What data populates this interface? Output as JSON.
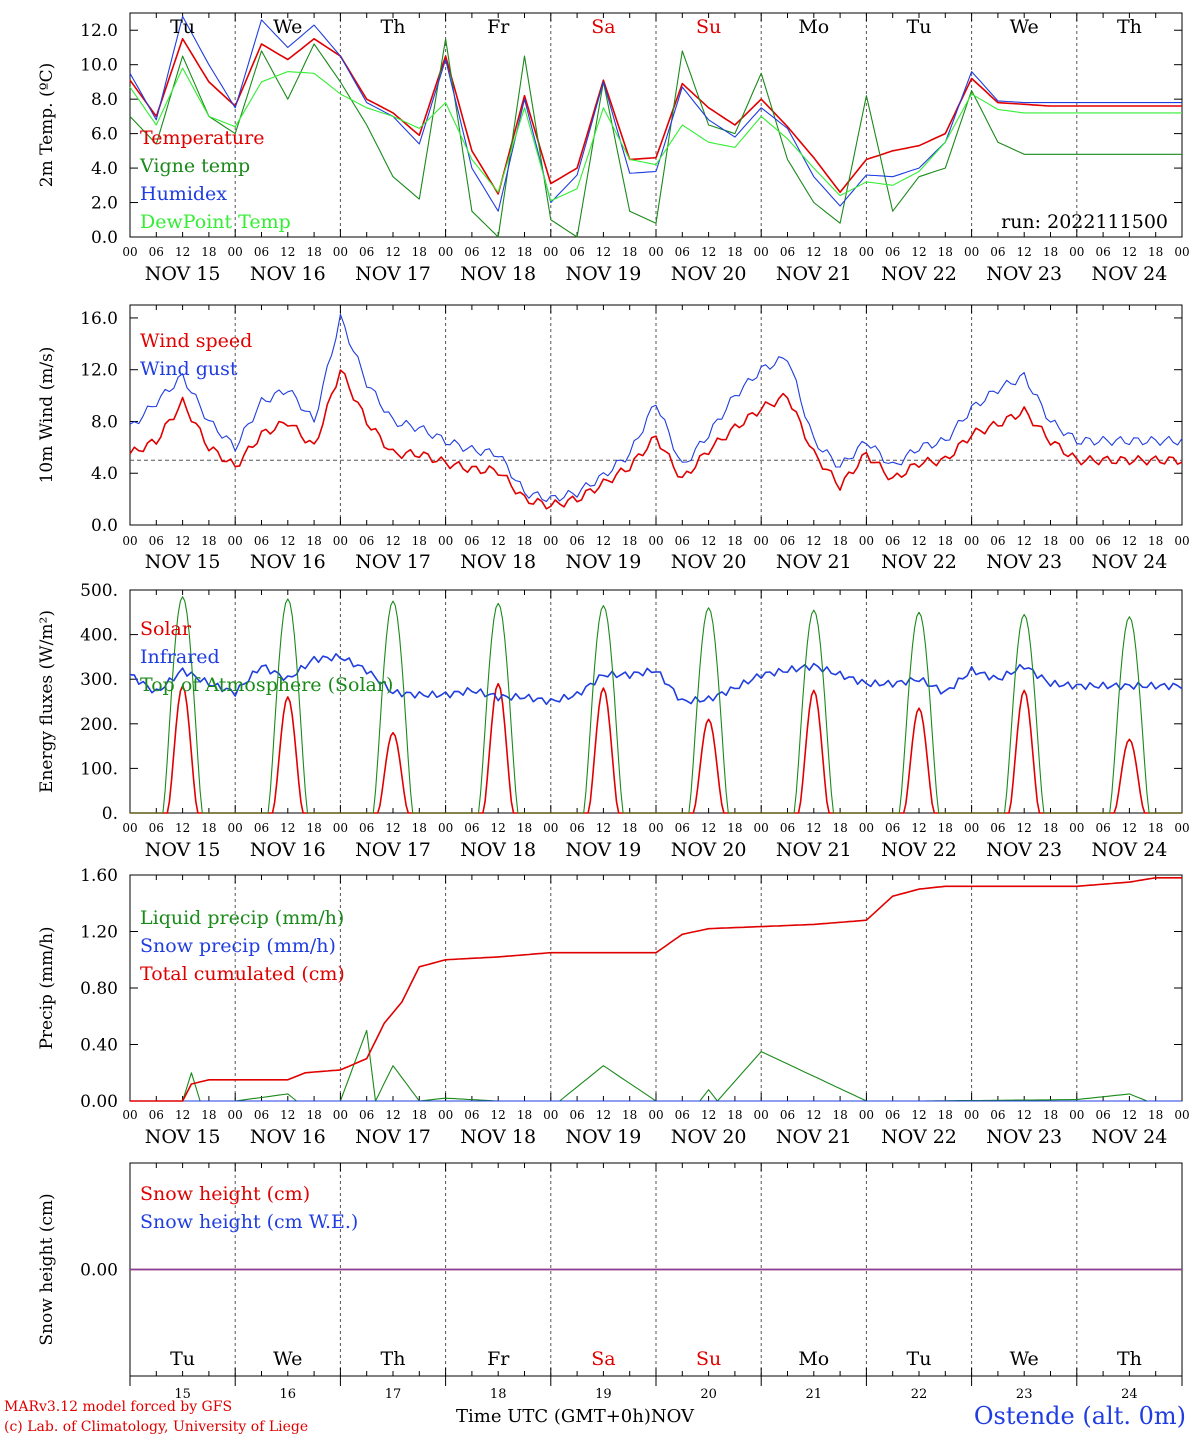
{
  "footer": {
    "credit_line1": "MARv3.12 model forced by GFS",
    "credit_line2": "(c) Lab. of Climatology, University of Liege",
    "xaxis_title": "Time UTC (GMT+0h)NOV",
    "station": "Ostende (alt. 0m)"
  },
  "run_label": "run: 2022111500",
  "hour_ticks": [
    "00",
    "06",
    "12",
    "18"
  ],
  "date_labels": [
    "NOV 15",
    "NOV 16",
    "NOV 17",
    "NOV 18",
    "NOV 19",
    "NOV 20",
    "NOV 21",
    "NOV 22",
    "NOV 23",
    "NOV 24"
  ],
  "weekdays": [
    "Tu",
    "We",
    "Th",
    "Fr",
    "Sa",
    "Su",
    "Mo",
    "Tu",
    "We",
    "Th"
  ],
  "weekend_color": "#e00000",
  "bottom_days": [
    "15",
    "16",
    "17",
    "18",
    "19",
    "20",
    "21",
    "22",
    "23",
    "24"
  ],
  "colors": {
    "red": "#e00000",
    "darkgreen": "#1a8a1a",
    "blue": "#1f3de0",
    "lightgreen": "#33ee33",
    "grid": "#555555",
    "purple": "#8040a0"
  },
  "chart_data": [
    {
      "type": "line",
      "ylabel": "2m Temp. (ºC)",
      "ylim": [
        0,
        13
      ],
      "yticks": [
        "0.0",
        "2.0",
        "4.0",
        "6.0",
        "8.0",
        "10.0",
        "12.0"
      ],
      "x_unit": "hours since NOV 15 00 UTC",
      "series": [
        {
          "name": "Temperature",
          "color": "red",
          "x": [
            0,
            6,
            12,
            18,
            24,
            30,
            36,
            42,
            48,
            54,
            60,
            66,
            72,
            78,
            84,
            90,
            96,
            102,
            108,
            114,
            120,
            126,
            132,
            138,
            144,
            150,
            156,
            162,
            168,
            174,
            180,
            186,
            192,
            198,
            204,
            210,
            216,
            222,
            228,
            234,
            240
          ],
          "values": [
            9.1,
            7.0,
            11.5,
            9.0,
            7.6,
            11.2,
            10.3,
            11.5,
            10.5,
            8.0,
            7.2,
            5.9,
            10.5,
            5.0,
            2.5,
            8.2,
            3.1,
            4.0,
            9.1,
            4.5,
            4.6,
            8.9,
            7.5,
            6.5,
            8.0,
            6.4,
            4.6,
            2.6,
            4.5,
            5.0,
            5.3,
            6.0,
            9.2,
            7.8,
            7.7,
            7.6,
            7.6,
            7.6,
            7.6,
            7.6,
            7.6
          ]
        },
        {
          "name": "Vigne temp",
          "color": "darkgreen",
          "x": [
            0,
            6,
            12,
            18,
            24,
            30,
            36,
            42,
            48,
            54,
            60,
            66,
            72,
            78,
            84,
            90,
            96,
            102,
            108,
            114,
            120,
            126,
            132,
            138,
            144,
            150,
            156,
            162,
            168,
            174,
            180,
            186,
            192,
            198,
            204,
            210,
            216,
            222,
            228,
            234,
            240
          ],
          "values": [
            7.0,
            5.4,
            10.5,
            7.0,
            6.0,
            10.8,
            8.0,
            11.2,
            9.0,
            6.5,
            3.5,
            2.2,
            11.5,
            1.5,
            0.0,
            10.5,
            1.0,
            0.0,
            9.0,
            1.5,
            0.8,
            10.8,
            6.5,
            6.0,
            9.5,
            4.5,
            2.0,
            0.8,
            8.2,
            1.5,
            3.5,
            4.0,
            8.5,
            5.5,
            4.8,
            4.8,
            4.8,
            4.8,
            4.8,
            4.8,
            4.8
          ]
        },
        {
          "name": "Humidex",
          "color": "blue",
          "x": [
            0,
            6,
            12,
            18,
            24,
            30,
            36,
            42,
            48,
            54,
            60,
            66,
            72,
            78,
            84,
            90,
            96,
            102,
            108,
            114,
            120,
            126,
            132,
            138,
            144,
            150,
            156,
            162,
            168,
            174,
            180,
            186,
            192,
            198,
            204,
            210,
            216,
            222,
            228,
            234,
            240
          ],
          "values": [
            9.5,
            6.8,
            12.8,
            10.0,
            7.5,
            12.6,
            11.0,
            12.3,
            10.5,
            7.8,
            7.0,
            5.4,
            10.3,
            4.0,
            1.5,
            8.0,
            2.0,
            3.6,
            9.0,
            3.7,
            3.8,
            8.7,
            6.8,
            5.8,
            7.5,
            6.3,
            3.5,
            1.8,
            3.6,
            3.5,
            4.0,
            5.5,
            9.6,
            7.9,
            7.8,
            7.8,
            7.8,
            7.8,
            7.8,
            7.8,
            7.8
          ]
        },
        {
          "name": "DewPoint Temp",
          "color": "lightgreen",
          "x": [
            0,
            6,
            12,
            18,
            24,
            30,
            36,
            42,
            48,
            54,
            60,
            66,
            72,
            78,
            84,
            90,
            96,
            102,
            108,
            114,
            120,
            126,
            132,
            138,
            144,
            150,
            156,
            162,
            168,
            174,
            180,
            186,
            192,
            198,
            204,
            210,
            216,
            222,
            228,
            234,
            240
          ],
          "values": [
            8.7,
            6.5,
            9.8,
            7.0,
            6.4,
            9.0,
            9.6,
            9.5,
            8.3,
            7.5,
            7.0,
            6.3,
            7.8,
            4.5,
            2.6,
            7.5,
            2.1,
            2.8,
            7.5,
            4.5,
            4.2,
            6.5,
            5.5,
            5.2,
            7.0,
            5.7,
            4.0,
            2.4,
            3.2,
            3.0,
            3.8,
            5.5,
            8.3,
            7.4,
            7.2,
            7.2,
            7.2,
            7.2,
            7.2,
            7.2,
            7.2
          ]
        }
      ]
    },
    {
      "type": "line",
      "ylabel": "10m Wind (m/s)",
      "ylim": [
        0,
        17
      ],
      "yticks": [
        "0.0",
        "4.0",
        "8.0",
        "12.0",
        "16.0"
      ],
      "reference_line": 5.0,
      "series": [
        {
          "name": "Wind speed",
          "color": "red",
          "x": [
            0,
            6,
            12,
            18,
            24,
            30,
            36,
            42,
            48,
            54,
            60,
            66,
            72,
            78,
            84,
            90,
            96,
            102,
            108,
            114,
            120,
            126,
            132,
            138,
            144,
            150,
            156,
            162,
            168,
            174,
            180,
            186,
            192,
            198,
            204,
            210,
            216,
            222,
            228,
            234,
            240
          ],
          "values": [
            5.5,
            6.5,
            9.5,
            6.0,
            4.5,
            7.0,
            8.0,
            6.0,
            12.0,
            8.0,
            5.5,
            5.5,
            4.8,
            4.3,
            4.2,
            2.0,
            1.5,
            2.0,
            3.2,
            4.5,
            6.8,
            3.5,
            5.8,
            7.5,
            9.0,
            10.0,
            5.5,
            3.0,
            5.5,
            3.5,
            4.8,
            5.0,
            7.0,
            7.8,
            8.8,
            6.5,
            5.0,
            5.0,
            5.0,
            5.0,
            5.0
          ]
        },
        {
          "name": "Wind gust",
          "color": "blue",
          "x": [
            0,
            6,
            12,
            18,
            24,
            30,
            36,
            42,
            48,
            54,
            60,
            66,
            72,
            78,
            84,
            90,
            96,
            102,
            108,
            114,
            120,
            126,
            132,
            138,
            144,
            150,
            156,
            162,
            168,
            174,
            180,
            186,
            192,
            198,
            204,
            210,
            216,
            222,
            228,
            234,
            240
          ],
          "values": [
            7.5,
            9.5,
            11.5,
            8.0,
            6.0,
            9.5,
            10.5,
            8.0,
            16.0,
            11.0,
            8.0,
            7.5,
            6.5,
            5.8,
            5.5,
            2.5,
            2.0,
            2.5,
            3.8,
            5.5,
            9.5,
            4.5,
            7.0,
            10.0,
            12.0,
            13.0,
            6.5,
            4.5,
            6.5,
            4.5,
            6.0,
            6.5,
            9.0,
            10.5,
            11.5,
            8.0,
            6.5,
            6.5,
            6.5,
            6.5,
            6.5
          ]
        }
      ]
    },
    {
      "type": "line",
      "ylabel": "Energy fluxes (W/m²)",
      "ylim": [
        0,
        500
      ],
      "yticks": [
        "0.",
        "100.",
        "200.",
        "300.",
        "400.",
        "500."
      ],
      "series": [
        {
          "name": "Solar",
          "color": "red",
          "daily_peaks": [
            285,
            260,
            180,
            290,
            280,
            210,
            275,
            235,
            275,
            165
          ]
        },
        {
          "name": "Infrared",
          "color": "blue",
          "x": [
            0,
            6,
            12,
            18,
            24,
            30,
            36,
            42,
            48,
            54,
            60,
            66,
            72,
            78,
            84,
            90,
            96,
            102,
            108,
            114,
            120,
            126,
            132,
            138,
            144,
            150,
            156,
            162,
            168,
            174,
            180,
            186,
            192,
            198,
            204,
            210,
            216,
            222,
            228,
            234,
            240
          ],
          "values": [
            310,
            270,
            320,
            290,
            270,
            330,
            300,
            345,
            350,
            320,
            270,
            265,
            265,
            275,
            260,
            260,
            250,
            265,
            310,
            310,
            320,
            250,
            255,
            280,
            310,
            320,
            330,
            310,
            290,
            290,
            300,
            270,
            320,
            300,
            330,
            290,
            285,
            285,
            285,
            285,
            285
          ]
        },
        {
          "name": "Top of Atmosphere (Solar)",
          "color": "darkgreen",
          "daily_peaks": [
            485,
            480,
            475,
            470,
            465,
            460,
            455,
            450,
            445,
            440
          ]
        }
      ]
    },
    {
      "type": "line",
      "ylabel": "Precip (mm/h)",
      "ylim": [
        0,
        1.6
      ],
      "yticks": [
        "0.00",
        "0.40",
        "0.80",
        "1.20",
        "1.60"
      ],
      "series": [
        {
          "name": "Liquid precip (mm/h)",
          "color": "darkgreen",
          "x": [
            0,
            12,
            14,
            16,
            24,
            36,
            38,
            40,
            42,
            48,
            54,
            56,
            60,
            66,
            72,
            84,
            96,
            98,
            108,
            120,
            130,
            132,
            134,
            144,
            168,
            168.5,
            180,
            216,
            228,
            232,
            240
          ],
          "values": [
            0,
            0,
            0.2,
            0,
            0,
            0.05,
            0,
            0,
            0,
            0,
            0.5,
            0,
            0.25,
            0,
            0.02,
            0,
            0,
            0,
            0.25,
            0,
            0,
            0.08,
            0,
            0.35,
            0,
            0,
            0,
            0.01,
            0.05,
            0,
            0
          ]
        },
        {
          "name": "Snow precip (mm/h)",
          "color": "blue",
          "x": [
            0,
            240
          ],
          "values": [
            0,
            0
          ]
        },
        {
          "name": "Total cumulated (cm)",
          "color": "red",
          "x": [
            0,
            12,
            14,
            18,
            36,
            40,
            48,
            54,
            58,
            62,
            66,
            72,
            84,
            96,
            108,
            120,
            126,
            132,
            156,
            168,
            174,
            180,
            186,
            216,
            228,
            234,
            240
          ],
          "values": [
            0,
            0,
            0.12,
            0.15,
            0.15,
            0.2,
            0.22,
            0.3,
            0.55,
            0.7,
            0.95,
            1.0,
            1.02,
            1.05,
            1.05,
            1.05,
            1.18,
            1.22,
            1.25,
            1.28,
            1.45,
            1.5,
            1.52,
            1.52,
            1.55,
            1.58,
            1.58
          ]
        }
      ]
    },
    {
      "type": "line",
      "ylabel": "Snow height (cm)",
      "ylim": [
        -1,
        1
      ],
      "yticks": [
        "0.00"
      ],
      "series": [
        {
          "name": "Snow height (cm)",
          "color": "red",
          "x": [
            0,
            240
          ],
          "values": [
            0,
            0
          ]
        },
        {
          "name": "Snow height (cm W.E.)",
          "color": "blue",
          "x": [
            0,
            240
          ],
          "values": [
            0,
            0
          ]
        }
      ]
    }
  ]
}
